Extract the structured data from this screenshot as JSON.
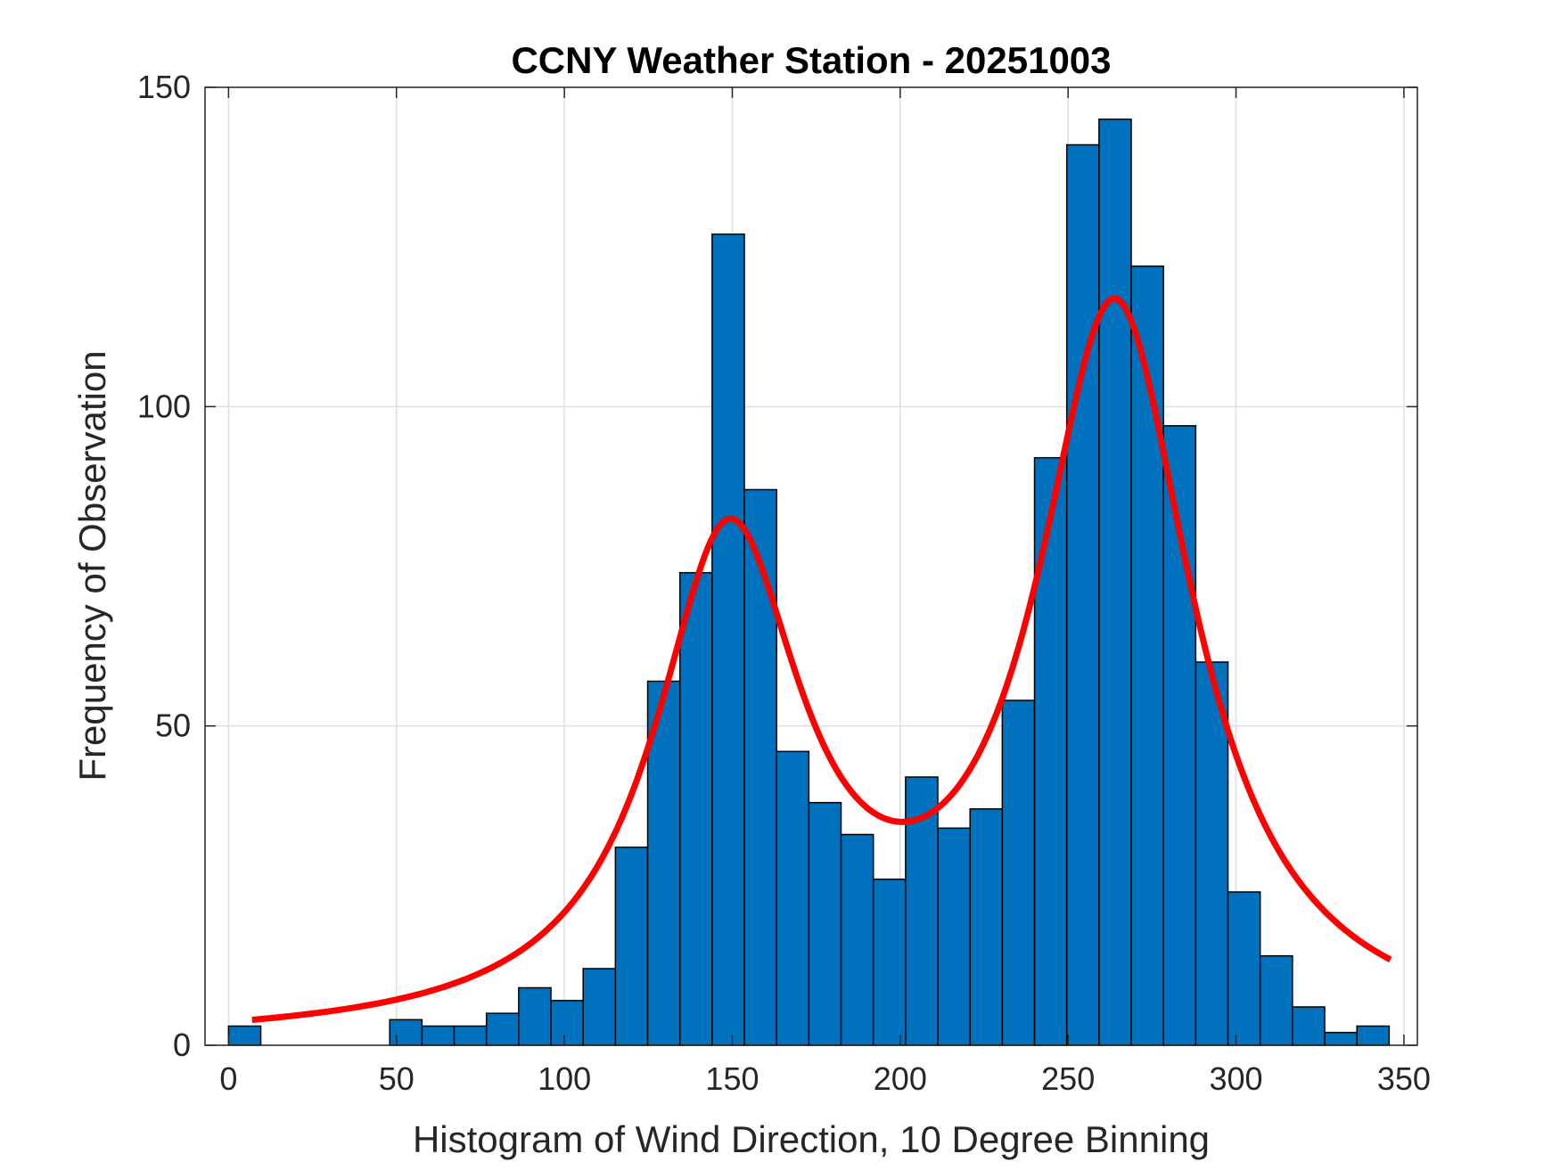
{
  "chart_data": {
    "type": "bar",
    "title": "CCNY Weather Station - 20251003",
    "xlabel": "Histogram of Wind Direction, 10 Degree Binning",
    "ylabel": "Frequency of Observation",
    "xlim": [
      -7,
      354
    ],
    "ylim": [
      0,
      150
    ],
    "xticks": [
      0,
      50,
      100,
      150,
      200,
      250,
      300,
      350
    ],
    "yticks": [
      0,
      50,
      100,
      150
    ],
    "grid": true,
    "bin_width": 9.6,
    "bin_starts": [
      0,
      9.6,
      19.2,
      28.8,
      38.4,
      48,
      57.6,
      67.2,
      76.8,
      86.4,
      96,
      105.6,
      115.2,
      124.8,
      134.4,
      144,
      153.6,
      163.2,
      172.8,
      182.4,
      192,
      201.6,
      211.2,
      220.8,
      230.4,
      240,
      249.6,
      259.2,
      268.8,
      278.4,
      288,
      297.6,
      307.2,
      316.8,
      326.4,
      336
    ],
    "values": [
      3,
      0,
      0,
      0,
      0,
      4,
      3,
      3,
      5,
      9,
      7,
      12,
      31,
      57,
      74,
      127,
      87,
      46,
      38,
      33,
      26,
      42,
      34,
      37,
      54,
      92,
      141,
      145,
      122,
      97,
      60,
      24,
      14,
      6,
      2,
      3
    ],
    "bar_color": "#0072BD",
    "fit_curve": {
      "type": "mixture-fit",
      "color": "#FF0000",
      "x_range": [
        7,
        346
      ],
      "components": [
        {
          "peak": 76,
          "center": 149,
          "sigma": 19
        },
        {
          "peak": 113,
          "center": 264,
          "sigma": 20
        }
      ]
    }
  }
}
